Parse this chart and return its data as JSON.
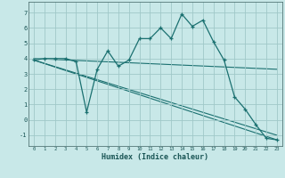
{
  "xlabel": "Humidex (Indice chaleur)",
  "xlim": [
    -0.5,
    23.5
  ],
  "ylim": [
    -1.7,
    7.7
  ],
  "yticks": [
    -1,
    0,
    1,
    2,
    3,
    4,
    5,
    6,
    7
  ],
  "xticks": [
    0,
    1,
    2,
    3,
    4,
    5,
    6,
    7,
    8,
    9,
    10,
    11,
    12,
    13,
    14,
    15,
    16,
    17,
    18,
    19,
    20,
    21,
    22,
    23
  ],
  "bg_color": "#c8e8e8",
  "grid_color": "#a0c8c8",
  "line_color": "#1a7070",
  "line1_x": [
    0,
    1,
    2,
    3,
    4,
    5,
    6,
    7,
    8,
    9,
    10,
    11,
    12,
    13,
    14,
    15,
    16,
    17,
    18,
    19,
    20,
    21,
    22,
    23
  ],
  "line1_y": [
    3.9,
    4.0,
    4.0,
    4.0,
    3.8,
    0.5,
    3.3,
    4.5,
    3.5,
    3.9,
    5.3,
    5.3,
    6.0,
    5.3,
    6.9,
    6.1,
    6.5,
    5.1,
    3.9,
    1.5,
    0.7,
    -0.3,
    -1.2,
    -1.3
  ],
  "line2_x": [
    0,
    23
  ],
  "line2_y": [
    3.9,
    -1.3
  ],
  "line3_x": [
    0,
    23
  ],
  "line3_y": [
    3.9,
    -1.0
  ],
  "line4_x": [
    0,
    23
  ],
  "line4_y": [
    4.0,
    3.3
  ]
}
